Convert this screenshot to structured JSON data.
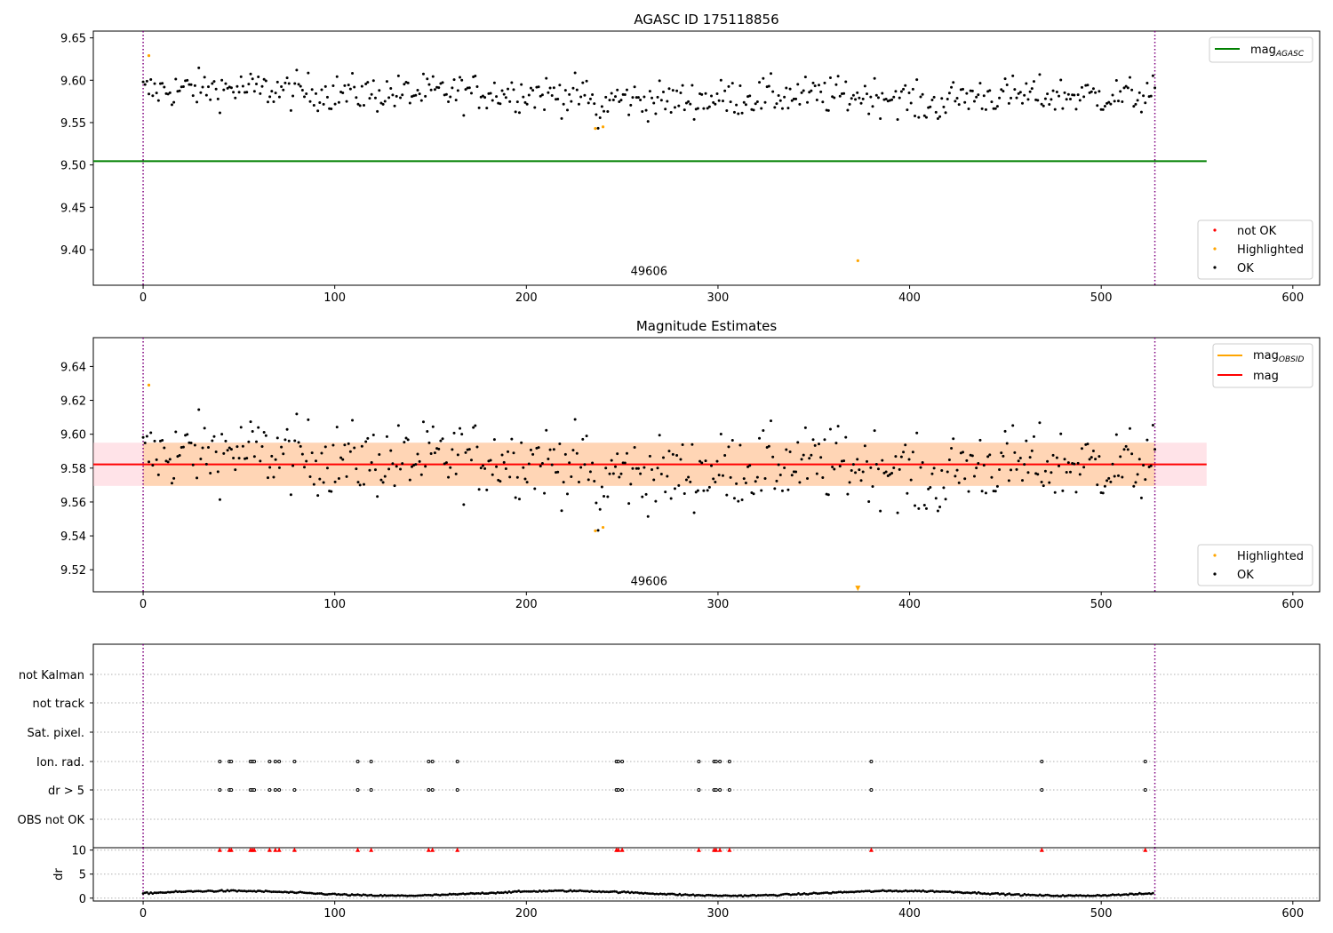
{
  "chart_data": [
    {
      "type": "scatter",
      "title": "AGASC ID 175118856",
      "xlabel": "",
      "ylabel": "",
      "xlim": [
        -26,
        614
      ],
      "ylim": [
        9.358,
        9.658
      ],
      "xticks": [
        "0",
        "100",
        "200",
        "300",
        "400",
        "500",
        "600"
      ],
      "yticks": [
        "9.40",
        "9.45",
        "9.50",
        "9.55",
        "9.60",
        "9.65"
      ],
      "annotation": {
        "text": "49606",
        "x": 264,
        "y": 9.37
      },
      "vlines": [
        0,
        528
      ],
      "hline": {
        "name": "mag",
        "subscript": "AGASC",
        "y": 9.5045,
        "x_range": [
          -26,
          555
        ],
        "color": "#008000"
      },
      "legend_lines": [
        {
          "name": "mag",
          "subscript": "AGASC",
          "color": "#008000"
        }
      ],
      "legend_points": [
        {
          "name": "not OK",
          "color": "#ff0000"
        },
        {
          "name": "Highlighted",
          "color": "#ffa500"
        },
        {
          "name": "OK",
          "color": "#000000"
        }
      ],
      "highlighted": [
        [
          3,
          9.629
        ],
        [
          236,
          9.543
        ],
        [
          240,
          9.545
        ],
        [
          373,
          9.387
        ]
      ],
      "ok_generator": {
        "n": 528,
        "x_range": [
          0,
          528
        ],
        "baseline": 9.582,
        "spread": 0.011
      }
    },
    {
      "type": "scatter",
      "title": "Magnitude Estimates",
      "xlabel": "",
      "ylabel": "",
      "xlim": [
        -26,
        614
      ],
      "ylim": [
        9.507,
        9.657
      ],
      "xticks": [
        "0",
        "100",
        "200",
        "300",
        "400",
        "500",
        "600"
      ],
      "yticks": [
        "9.52",
        "9.54",
        "9.56",
        "9.58",
        "9.60",
        "9.62",
        "9.64"
      ],
      "annotation": {
        "text": "49606",
        "x": 264,
        "y": 9.511
      },
      "vlines": [
        0,
        528
      ],
      "mag_line": {
        "y": 9.5822,
        "color": "#ff0000"
      },
      "mag_band": {
        "y_range": [
          9.5695,
          9.595
        ],
        "x_range": [
          -26,
          555
        ]
      },
      "legend_lines": [
        {
          "name": "mag",
          "subscript": "OBSID",
          "color": "#ffa500"
        },
        {
          "name": "mag",
          "subscript": "",
          "color": "#ff0000"
        }
      ],
      "legend_points": [
        {
          "name": "Highlighted",
          "color": "#ffa500"
        },
        {
          "name": "OK",
          "color": "#000000"
        }
      ],
      "highlighted": [
        [
          3,
          9.629
        ],
        [
          236,
          9.543
        ],
        [
          240,
          9.545
        ],
        [
          373,
          9.509
        ]
      ]
    },
    {
      "type": "scatter",
      "title": "",
      "xlabel": "",
      "ylabel": "",
      "xlim": [
        -26,
        614
      ],
      "categories": [
        "not Kalman",
        "not track",
        "Sat. pixel.",
        "Ion. rad.",
        "dr > 5",
        "OBS not OK"
      ],
      "flag_x": [
        40,
        45,
        46,
        56,
        57,
        58,
        66,
        69,
        71,
        79,
        112,
        119,
        149,
        151,
        164,
        247,
        248,
        250,
        290,
        298,
        299,
        301,
        306,
        380,
        469,
        523
      ],
      "flag_rows": [
        "Ion. rad.",
        "dr > 5"
      ],
      "vlines": [
        0,
        528
      ]
    },
    {
      "type": "scatter",
      "title": "",
      "xlabel": "",
      "ylabel": "dr",
      "xlim": [
        -26,
        614
      ],
      "ylim": [
        -0.6,
        10.5
      ],
      "xticks": [
        "0",
        "100",
        "200",
        "300",
        "400",
        "500",
        "600"
      ],
      "yticks": [
        "0",
        "5",
        "10"
      ],
      "cap_value": 10,
      "vlines": [
        0,
        528
      ]
    }
  ]
}
